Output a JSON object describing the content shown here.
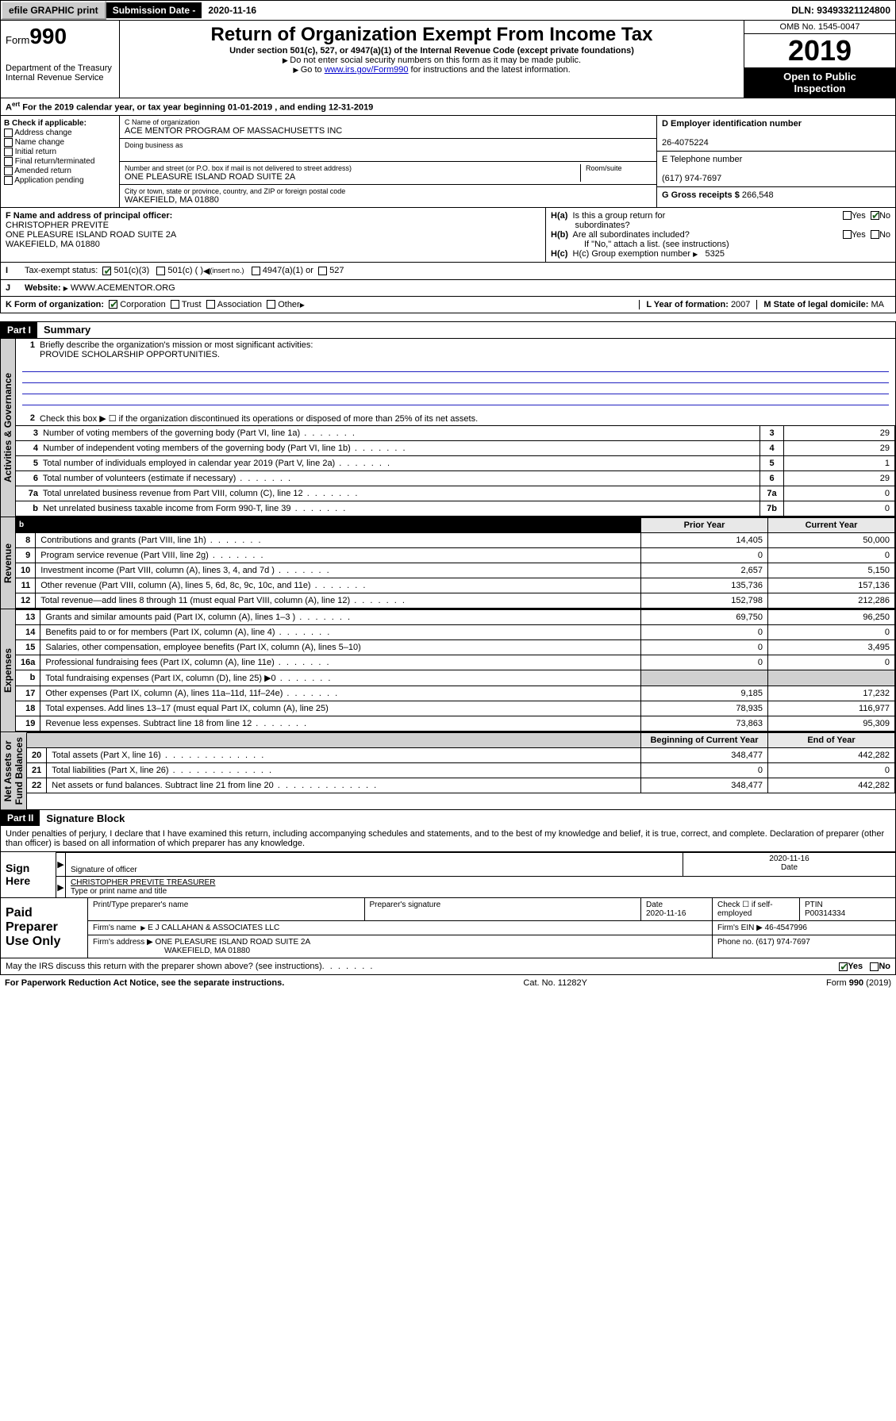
{
  "topbar": {
    "efile_btn": "efile GRAPHIC print",
    "sub_label": "Submission Date - ",
    "sub_date": "2020-11-16",
    "dln": "DLN: 93493321124800"
  },
  "header": {
    "form_prefix": "Form",
    "form_num": "990",
    "dept": "Department of the Treasury\nInternal Revenue Service",
    "title": "Return of Organization Exempt From Income Tax",
    "subtitle": "Under section 501(c), 527, or 4947(a)(1) of the Internal Revenue Code (except private foundations)",
    "note1": "Do not enter social security numbers on this form as it may be made public.",
    "note2_a": "Go to ",
    "note2_link": "www.irs.gov/Form990",
    "note2_b": " for instructions and the latest information.",
    "omb": "OMB No. 1545-0047",
    "year": "2019",
    "open": "Open to Public\nInspection"
  },
  "calrow": {
    "a": "For the 2019 calendar year, or tax year beginning ",
    "b": "01-01-2019",
    "c": "  , and ending ",
    "d": "12-31-2019"
  },
  "boxB": {
    "hdr": "B Check if applicable:",
    "items": [
      "Address change",
      "Name change",
      "Initial return",
      "Final return/terminated",
      "Amended return",
      "Application pending"
    ]
  },
  "boxC": {
    "name_lbl": "C Name of organization",
    "name": "ACE MENTOR PROGRAM OF MASSACHUSETTS INC",
    "dba_lbl": "Doing business as",
    "addr_lbl": "Number and street (or P.O. box if mail is not delivered to street address)",
    "room_lbl": "Room/suite",
    "addr": "ONE PLEASURE ISLAND ROAD SUITE 2A",
    "city_lbl": "City or town, state or province, country, and ZIP or foreign postal code",
    "city": "WAKEFIELD, MA  01880"
  },
  "boxD": {
    "lbl": "D Employer identification number",
    "val": "26-4075224"
  },
  "boxE": {
    "lbl": "E Telephone number",
    "val": "(617) 974-7697"
  },
  "boxG": {
    "lbl": "G Gross receipts $ ",
    "val": "266,548"
  },
  "boxF": {
    "lbl": "F  Name and address of principal officer:",
    "name": "CHRISTOPHER PREVITE",
    "addr": "ONE PLEASURE ISLAND ROAD SUITE 2A",
    "city": "WAKEFIELD, MA  01880"
  },
  "boxH": {
    "a_lbl": "H(a)  Is this a group return for subordinates?",
    "b_lbl": "H(b)  Are all subordinates included?",
    "note": "If \"No,\" attach a list. (see instructions)",
    "c_lbl": "H(c)  Group exemption number ",
    "c_val": "5325",
    "yes": "Yes",
    "no": "No"
  },
  "taxrow": {
    "lbl": "Tax-exempt status:",
    "o1": "501(c)(3)",
    "o2": "501(c) (   )",
    "o2b": "(insert no.)",
    "o3": "4947(a)(1) or",
    "o4": "527"
  },
  "webrow": {
    "lbl": "Website:",
    "val": "WWW.ACEMENTOR.ORG"
  },
  "krow": {
    "lbl": "K Form of organization:",
    "o1": "Corporation",
    "o2": "Trust",
    "o3": "Association",
    "o4": "Other",
    "l_lbl": "L Year of formation: ",
    "l_val": "2007",
    "m_lbl": "M State of legal domicile: ",
    "m_val": "MA"
  },
  "part1": {
    "hdr": "Part I",
    "title": "Summary"
  },
  "gov": {
    "q1": "Briefly describe the organization's mission or most significant activities:",
    "q1a": "PROVIDE SCHOLARSHIP OPPORTUNITIES.",
    "q2": "Check this box ▶ ☐  if the organization discontinued its operations or disposed of more than 25% of its net assets.",
    "lines": [
      {
        "n": "3",
        "t": "Number of voting members of the governing body (Part VI, line 1a)",
        "b": "3",
        "v": "29"
      },
      {
        "n": "4",
        "t": "Number of independent voting members of the governing body (Part VI, line 1b)",
        "b": "4",
        "v": "29"
      },
      {
        "n": "5",
        "t": "Total number of individuals employed in calendar year 2019 (Part V, line 2a)",
        "b": "5",
        "v": "1"
      },
      {
        "n": "6",
        "t": "Total number of volunteers (estimate if necessary)",
        "b": "6",
        "v": "29"
      },
      {
        "n": "7a",
        "t": "Total unrelated business revenue from Part VIII, column (C), line 12",
        "b": "7a",
        "v": "0"
      },
      {
        "n": "b",
        "t": "Net unrelated business taxable income from Form 990-T, line 39",
        "b": "7b",
        "v": "0"
      }
    ]
  },
  "rev": {
    "h_prior": "Prior Year",
    "h_curr": "Current Year",
    "rows": [
      {
        "n": "8",
        "t": "Contributions and grants (Part VIII, line 1h)",
        "p": "14,405",
        "c": "50,000"
      },
      {
        "n": "9",
        "t": "Program service revenue (Part VIII, line 2g)",
        "p": "0",
        "c": "0"
      },
      {
        "n": "10",
        "t": "Investment income (Part VIII, column (A), lines 3, 4, and 7d )",
        "p": "2,657",
        "c": "5,150"
      },
      {
        "n": "11",
        "t": "Other revenue (Part VIII, column (A), lines 5, 6d, 8c, 9c, 10c, and 11e)",
        "p": "135,736",
        "c": "157,136"
      },
      {
        "n": "12",
        "t": "Total revenue—add lines 8 through 11 (must equal Part VIII, column (A), line 12)",
        "p": "152,798",
        "c": "212,286"
      }
    ]
  },
  "exp": {
    "rows": [
      {
        "n": "13",
        "t": "Grants and similar amounts paid (Part IX, column (A), lines 1–3 )",
        "p": "69,750",
        "c": "96,250",
        "dots": "s"
      },
      {
        "n": "14",
        "t": "Benefits paid to or for members (Part IX, column (A), line 4)",
        "p": "0",
        "c": "0",
        "dots": "s"
      },
      {
        "n": "15",
        "t": "Salaries, other compensation, employee benefits (Part IX, column (A), lines 5–10)",
        "p": "0",
        "c": "3,495",
        "dots": ""
      },
      {
        "n": "16a",
        "t": "Professional fundraising fees (Part IX, column (A), line 11e)",
        "p": "0",
        "c": "0",
        "dots": "s"
      },
      {
        "n": "b",
        "t": "Total fundraising expenses (Part IX, column (D), line 25) ▶0",
        "p": "",
        "c": "",
        "gray": true
      },
      {
        "n": "17",
        "t": "Other expenses (Part IX, column (A), lines 11a–11d, 11f–24e)",
        "p": "9,185",
        "c": "17,232",
        "dots": "s"
      },
      {
        "n": "18",
        "t": "Total expenses. Add lines 13–17 (must equal Part IX, column (A), line 25)",
        "p": "78,935",
        "c": "116,977",
        "dots": ""
      },
      {
        "n": "19",
        "t": "Revenue less expenses. Subtract line 18 from line 12",
        "p": "73,863",
        "c": "95,309",
        "dots": "s"
      }
    ]
  },
  "net": {
    "h_beg": "Beginning of Current Year",
    "h_end": "End of Year",
    "rows": [
      {
        "n": "20",
        "t": "Total assets (Part X, line 16)",
        "p": "348,477",
        "c": "442,282"
      },
      {
        "n": "21",
        "t": "Total liabilities (Part X, line 26)",
        "p": "0",
        "c": "0"
      },
      {
        "n": "22",
        "t": "Net assets or fund balances. Subtract line 21 from line 20",
        "p": "348,477",
        "c": "442,282"
      }
    ]
  },
  "part2": {
    "hdr": "Part II",
    "title": "Signature Block"
  },
  "perjury": "Under penalties of perjury, I declare that I have examined this return, including accompanying schedules and statements, and to the best of my knowledge and belief, it is true, correct, and complete. Declaration of preparer (other than officer) is based on all information of which preparer has any knowledge.",
  "sign": {
    "here": "Sign\nHere",
    "sig_lbl": "Signature of officer",
    "date_lbl": "Date",
    "date": "2020-11-16",
    "name": "CHRISTOPHER PREVITE  TREASURER",
    "name_lbl": "Type or print name and title"
  },
  "paid": {
    "lbl": "Paid\nPreparer\nUse Only",
    "h1": "Print/Type preparer's name",
    "h2": "Preparer's signature",
    "h3": "Date",
    "h4": "Check ☐ if self-employed",
    "h5": "PTIN",
    "date": "2020-11-16",
    "ptin": "P00314334",
    "firm_lbl": "Firm's name",
    "firm": "E J CALLAHAN & ASSOCIATES LLC",
    "ein_lbl": "Firm's EIN ▶ ",
    "ein": "46-4547996",
    "addr_lbl": "Firm's address ▶",
    "addr": "ONE PLEASURE ISLAND ROAD SUITE 2A",
    "city": "WAKEFIELD, MA  01880",
    "phone_lbl": "Phone no. ",
    "phone": "(617) 974-7697"
  },
  "footer": {
    "discuss": "May the IRS discuss this return with the preparer shown above? (see instructions)",
    "yes": "Yes",
    "no": "No",
    "pra": "For Paperwork Reduction Act Notice, see the separate instructions.",
    "cat": "Cat. No. 11282Y",
    "form": "Form 990 (2019)"
  },
  "vtabs": {
    "gov": "Activities & Governance",
    "rev": "Revenue",
    "exp": "Expenses",
    "net": "Net Assets or\nFund Balances"
  }
}
